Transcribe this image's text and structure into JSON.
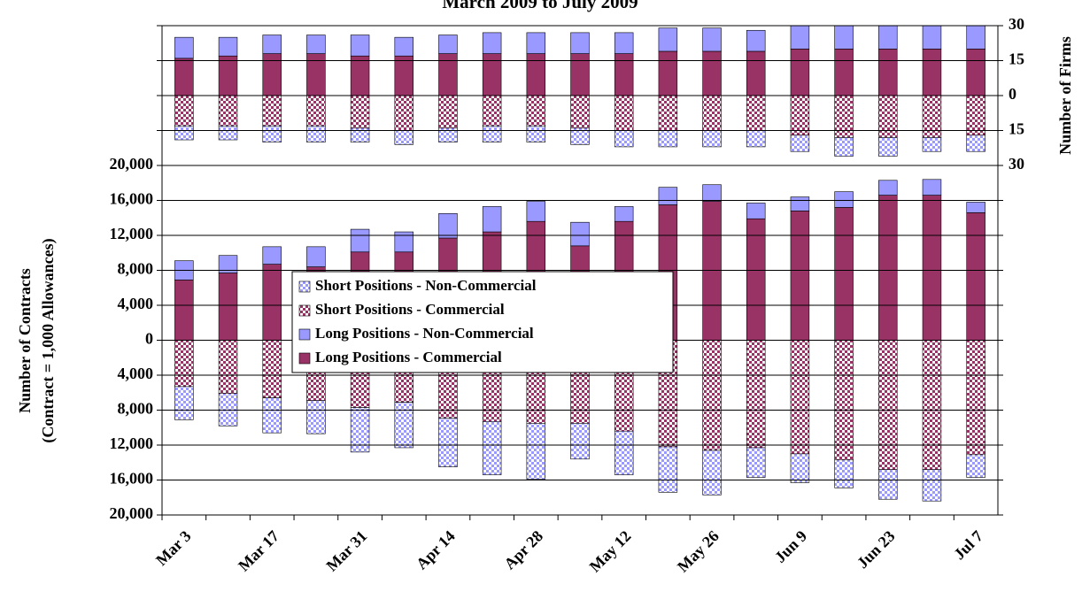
{
  "chart_data": [
    {
      "type": "bar",
      "stacked": true,
      "title": "March 2009 to July 2009",
      "y2label": "Number of Firms",
      "y2lim": [
        -30,
        30
      ],
      "y2ticks": [
        {
          "value": -30,
          "label": "30"
        },
        {
          "value": -15,
          "label": "15"
        },
        0,
        15,
        30
      ],
      "grid": true,
      "series": [
        {
          "color": "#9999ff",
          "pattern": "checker",
          "values": [
            -6,
            -6,
            -7,
            -7,
            -6,
            -6,
            -6,
            -7,
            -7,
            -7,
            -7,
            -7,
            -7,
            -7,
            -7,
            -8,
            -8,
            -6,
            -7
          ]
        },
        {
          "color": "#993366",
          "pattern": "checker",
          "values": [
            -13,
            -13,
            -13,
            -13,
            -14,
            -15,
            -14,
            -13,
            -13,
            -14,
            -15,
            -15,
            -15,
            -15,
            -17,
            -18,
            -18,
            -18,
            -17
          ]
        },
        {
          "color": "#9999ff",
          "pattern": "solid",
          "values": [
            9,
            8,
            8,
            8,
            9,
            8,
            8,
            9,
            9,
            9,
            9,
            10,
            10,
            9,
            10,
            10,
            10,
            10,
            10
          ]
        },
        {
          "color": "#993366",
          "pattern": "solid",
          "values": [
            16,
            17,
            18,
            18,
            17,
            17,
            18,
            18,
            18,
            18,
            18,
            19,
            19,
            19,
            20,
            20,
            20,
            20,
            20
          ]
        }
      ]
    },
    {
      "type": "bar",
      "stacked": true,
      "ylabel": [
        "Number of Contracts",
        "(Contract = 1,000 Allowances)"
      ],
      "categories": [
        "Mar 3",
        null,
        "Mar 17",
        null,
        "Mar 31",
        null,
        "Apr 14",
        null,
        "Apr 28",
        null,
        "May 12",
        null,
        "May 26",
        null,
        "Jun 9",
        null,
        "Jun 23",
        null,
        "Jul 7"
      ],
      "ylim": [
        -20000,
        20000
      ],
      "yticks": [
        {
          "value": -20000,
          "label": "20,000"
        },
        {
          "value": -16000,
          "label": "16,000"
        },
        {
          "value": -12000,
          "label": "12,000"
        },
        {
          "value": -8000,
          "label": "8,000"
        },
        {
          "value": -4000,
          "label": "4,000"
        },
        0,
        {
          "value": 4000,
          "label": "4,000"
        },
        {
          "value": 8000,
          "label": "8,000"
        },
        {
          "value": 12000,
          "label": "12,000"
        },
        {
          "value": 16000,
          "label": "16,000"
        },
        {
          "value": 20000,
          "label": "20,000"
        }
      ],
      "grid": true,
      "legend": "center",
      "series": [
        {
          "name": "Short Positions - Non-Commercial",
          "color": "#9999ff",
          "pattern": "checker",
          "values": [
            -3800,
            -3700,
            -4000,
            -3800,
            -5100,
            -5200,
            -5600,
            -6100,
            -6400,
            -4100,
            -5000,
            -5200,
            -5100,
            -3400,
            -3300,
            -3200,
            -3400,
            -3600,
            -2600
          ]
        },
        {
          "name": "Short Positions - Commercial",
          "color": "#993366",
          "pattern": "checker",
          "values": [
            -5300,
            -6100,
            -6600,
            -6900,
            -7700,
            -7100,
            -8900,
            -9300,
            -9500,
            -9500,
            -10400,
            -12200,
            -12600,
            -12300,
            -13000,
            -13700,
            -14800,
            -14800,
            -13100
          ]
        },
        {
          "name": "Long Positions - Non-Commercial",
          "color": "#9999ff",
          "pattern": "solid",
          "values": [
            2200,
            2000,
            2000,
            2300,
            2600,
            2300,
            2800,
            2900,
            2300,
            2700,
            1700,
            2000,
            1900,
            1800,
            1600,
            1800,
            1700,
            1800,
            1200
          ]
        },
        {
          "name": "Long Positions - Commercial",
          "color": "#993366",
          "pattern": "solid",
          "values": [
            6900,
            7700,
            8700,
            8400,
            10100,
            10100,
            11700,
            12400,
            13600,
            10800,
            13600,
            15500,
            15900,
            13900,
            14800,
            15200,
            16600,
            16600,
            14600
          ]
        }
      ]
    }
  ]
}
